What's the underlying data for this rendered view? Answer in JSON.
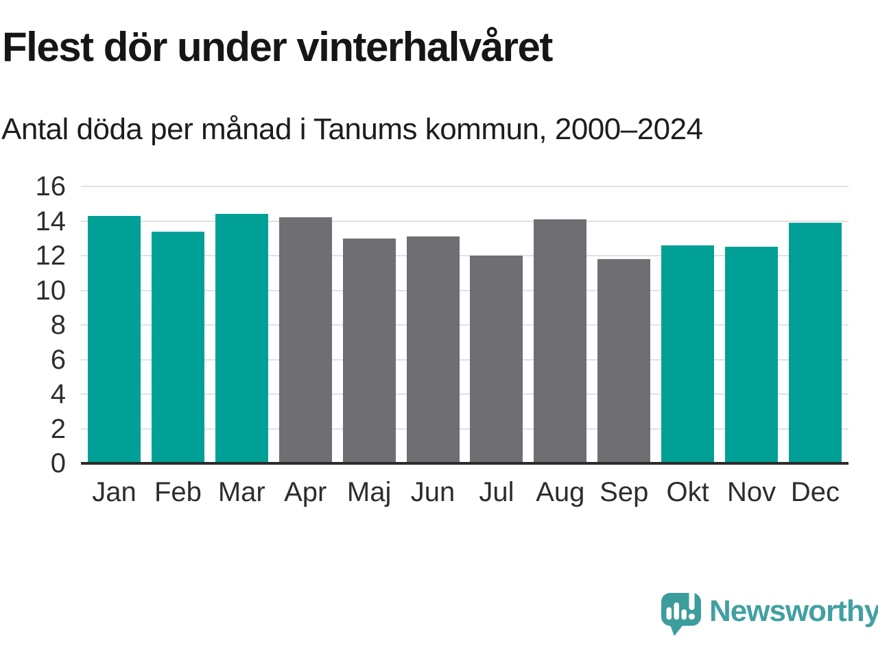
{
  "header": {
    "title": "Flest dör under vinterhalvåret",
    "subtitle": "Antal döda per månad i Tanums kommun, 2000–2024"
  },
  "chart_data": {
    "type": "bar",
    "title": "Flest dör under vinterhalvåret",
    "subtitle": "Antal döda per månad i Tanums kommun, 2000–2024",
    "categories": [
      "Jan",
      "Feb",
      "Mar",
      "Apr",
      "Maj",
      "Jun",
      "Jul",
      "Aug",
      "Sep",
      "Okt",
      "Nov",
      "Dec"
    ],
    "values": [
      14.3,
      13.4,
      14.4,
      14.2,
      13.0,
      13.1,
      12.0,
      14.1,
      11.8,
      12.6,
      12.5,
      13.9
    ],
    "bar_groups": [
      "winter",
      "winter",
      "winter",
      "summer",
      "summer",
      "summer",
      "summer",
      "summer",
      "summer",
      "winter",
      "winter",
      "winter"
    ],
    "group_colors": {
      "winter": "#00a096",
      "summer": "#6e6e73"
    },
    "ylim": [
      0,
      16
    ],
    "yticks": [
      0,
      2,
      4,
      6,
      8,
      10,
      12,
      14,
      16
    ],
    "grid": "horizontal",
    "gridline_color": "#e1e1e1",
    "axis_line_color": "#2b2b2b",
    "legend": "none",
    "xlabel": "",
    "ylabel": ""
  },
  "footer": {
    "brand": "Newsworthy",
    "logo_icon": "newsworthy-speech-bubble-bar-chart-icon",
    "logo_color": "#3d9c9c",
    "brand_color": "#41a0a2"
  }
}
